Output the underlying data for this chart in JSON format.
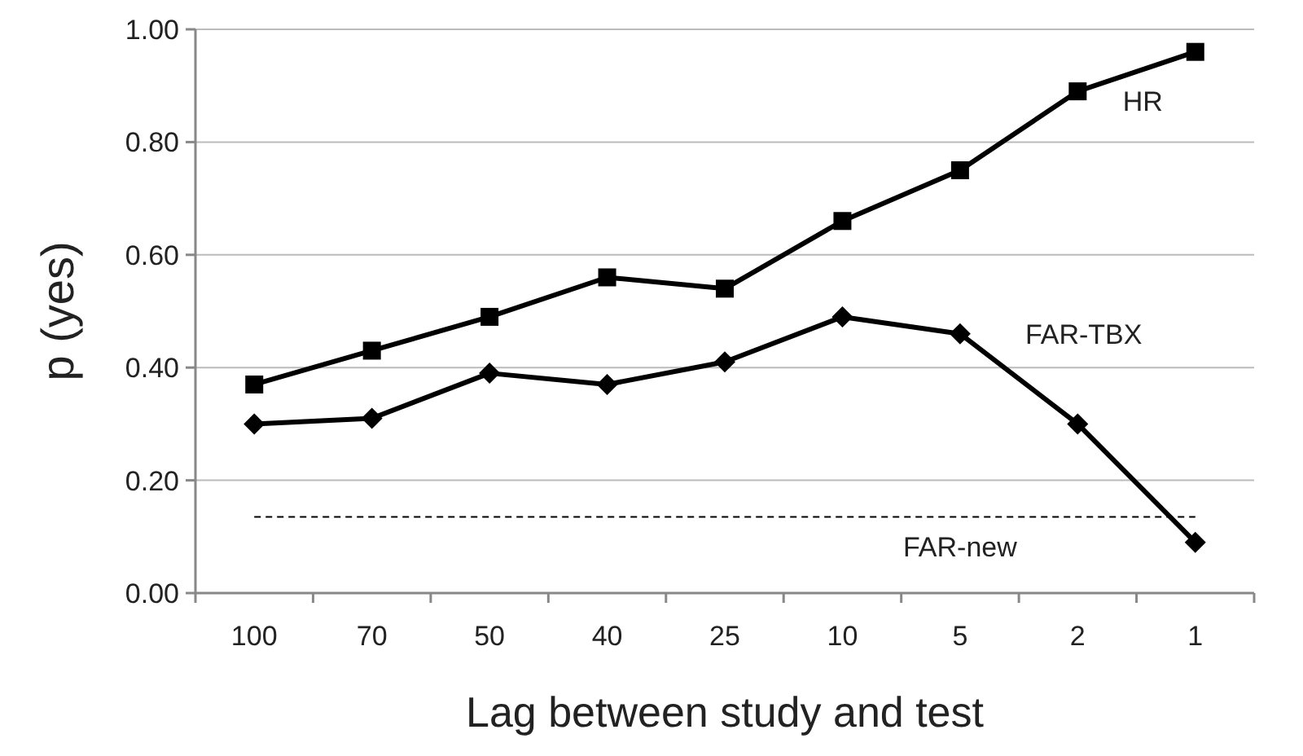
{
  "chart_data": {
    "type": "line",
    "xlabel": "Lag between study and test",
    "ylabel": "p (yes)",
    "categories": [
      "100",
      "70",
      "50",
      "40",
      "25",
      "10",
      "5",
      "2",
      "1"
    ],
    "series": [
      {
        "name": "HR",
        "color": "#000000",
        "marker": "square",
        "values": [
          0.37,
          0.43,
          0.49,
          0.56,
          0.54,
          0.66,
          0.75,
          0.89,
          0.96
        ]
      },
      {
        "name": "FAR-TBX",
        "color": "#000000",
        "marker": "diamond",
        "values": [
          0.3,
          0.31,
          0.39,
          0.37,
          0.41,
          0.49,
          0.46,
          0.3,
          0.09
        ]
      }
    ],
    "ref_lines": [
      {
        "axis": "y",
        "value": 0.135,
        "label": "FAR-new",
        "color": "#000000",
        "line_style": "dashed"
      }
    ],
    "ylim": [
      0,
      1
    ],
    "yticks": [
      {
        "value": 0,
        "label": "0.00"
      },
      {
        "value": 0.2,
        "label": "0.20"
      },
      {
        "value": 0.4,
        "label": "0.40"
      },
      {
        "value": 0.6,
        "label": "0.60"
      },
      {
        "value": 0.8,
        "label": "0.80"
      },
      {
        "value": 1,
        "label": "1.00"
      }
    ],
    "grid": "y",
    "line_style": "solid"
  }
}
